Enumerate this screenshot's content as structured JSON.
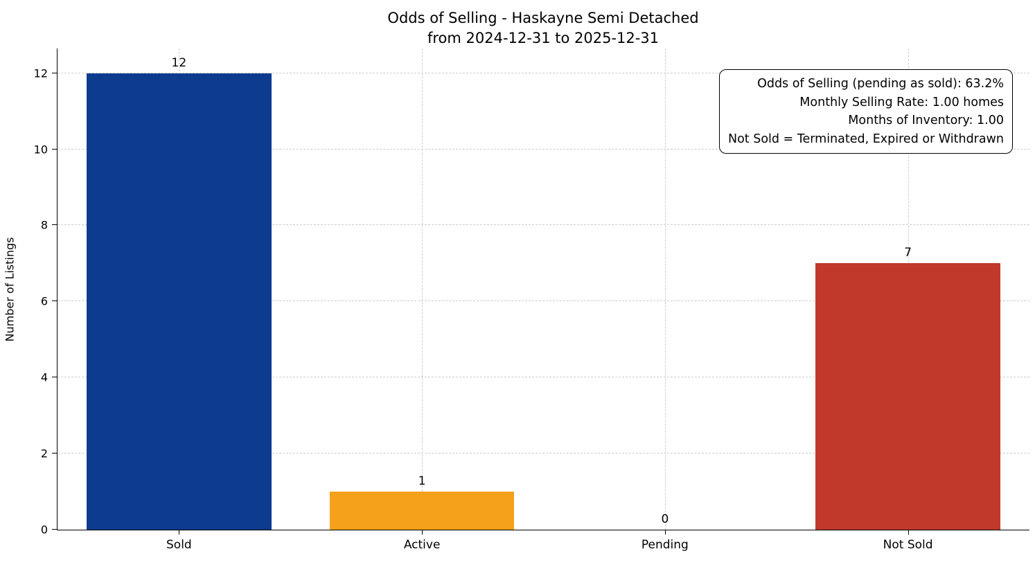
{
  "chart_data": {
    "type": "bar",
    "title": "Odds of Selling - Haskayne Semi Detached",
    "subtitle": "from 2024-12-31 to 2025-12-31",
    "categories": [
      "Sold",
      "Active",
      "Pending",
      "Not Sold"
    ],
    "values": [
      12,
      1,
      0,
      7
    ],
    "bar_colors": [
      "#0d3c8e",
      "#f5a11b",
      "#999999",
      "#c0392b"
    ],
    "xlabel": "",
    "ylabel": "Number of Listings",
    "ylim": [
      0,
      12.65
    ],
    "yticks": [
      0,
      2,
      4,
      6,
      8,
      10,
      12
    ],
    "grid": "dashed-both",
    "legend": "none",
    "annotation": {
      "position": "top-right",
      "lines": [
        "Odds of Selling (pending as sold): 63.2%",
        "Monthly Selling Rate: 1.00 homes",
        "Months of Inventory: 1.00",
        "Not Sold = Terminated, Expired or Withdrawn"
      ]
    }
  }
}
